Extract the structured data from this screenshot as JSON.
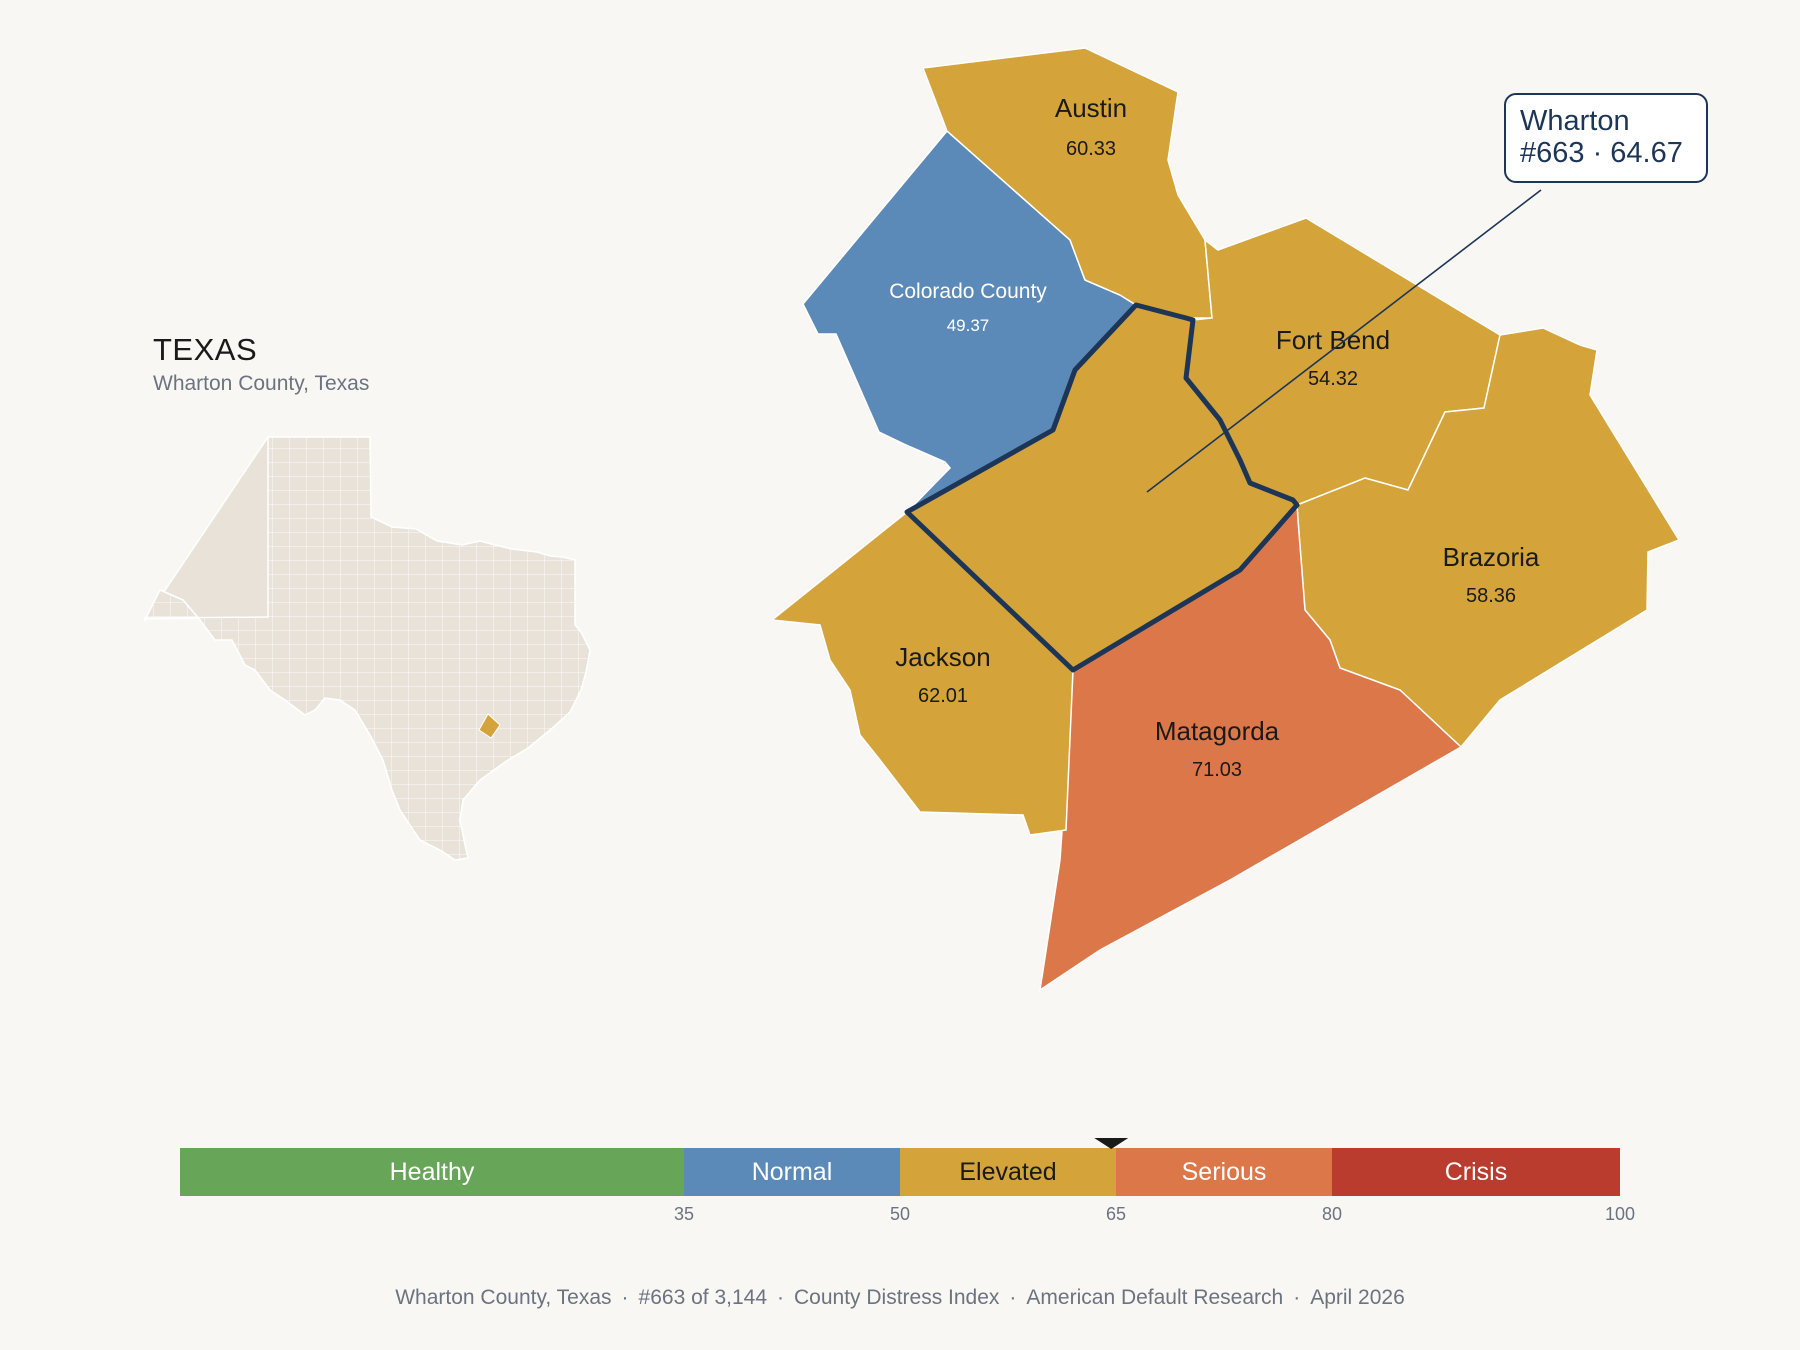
{
  "state": {
    "title": "TEXAS",
    "subtitle": "Wharton County, Texas"
  },
  "callout": {
    "name": "Wharton",
    "rank_score": "#663 · 64.67"
  },
  "counties": [
    {
      "id": "austin",
      "name": "Austin",
      "score": "60.33",
      "category": "Elevated"
    },
    {
      "id": "colorado",
      "name": "Colorado County",
      "score": "49.37",
      "category": "Normal"
    },
    {
      "id": "fort-bend",
      "name": "Fort Bend",
      "score": "54.32",
      "category": "Elevated"
    },
    {
      "id": "brazoria",
      "name": "Brazoria",
      "score": "58.36",
      "category": "Elevated"
    },
    {
      "id": "jackson",
      "name": "Jackson",
      "score": "62.01",
      "category": "Elevated"
    },
    {
      "id": "matagorda",
      "name": "Matagorda",
      "score": "71.03",
      "category": "Serious"
    },
    {
      "id": "wharton",
      "name": "Wharton",
      "score": "64.67",
      "category": "Elevated",
      "highlighted": true
    }
  ],
  "legend": {
    "segments": [
      {
        "label": "Healthy",
        "from": 0,
        "to": 35,
        "color": "#67a659"
      },
      {
        "label": "Normal",
        "from": 35,
        "to": 50,
        "color": "#5b8ab8"
      },
      {
        "label": "Elevated",
        "from": 50,
        "to": 65,
        "color": "#d4a43a"
      },
      {
        "label": "Serious",
        "from": 65,
        "to": 80,
        "color": "#dc774a"
      },
      {
        "label": "Crisis",
        "from": 80,
        "to": 100,
        "color": "#b93c2e"
      }
    ],
    "ticks": [
      "35",
      "50",
      "65",
      "80",
      "100"
    ],
    "marker_value": 64.67
  },
  "footer": {
    "items": [
      "Wharton County, Texas",
      "#663 of 3,144",
      "County Distress Index",
      "American Default Research",
      "April 2026"
    ],
    "separator": "·"
  },
  "colors": {
    "background": "#f9f7f3",
    "inset_land": "#e8e2d8",
    "highlight_outline": "#1d3557"
  }
}
